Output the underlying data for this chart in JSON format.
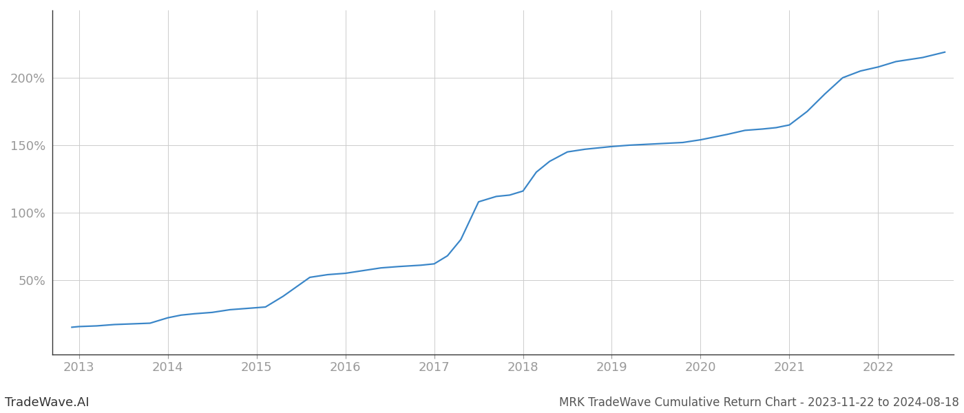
{
  "title": "MRK TradeWave Cumulative Return Chart - 2023-11-22 to 2024-08-18",
  "watermark": "TradeWave.AI",
  "line_color": "#3a86c8",
  "background_color": "#ffffff",
  "grid_color": "#cccccc",
  "x_years": [
    2012.92,
    2013.0,
    2013.2,
    2013.4,
    2013.6,
    2013.8,
    2014.0,
    2014.15,
    2014.3,
    2014.5,
    2014.7,
    2014.9,
    2015.1,
    2015.3,
    2015.6,
    2015.8,
    2016.0,
    2016.2,
    2016.4,
    2016.6,
    2016.85,
    2017.0,
    2017.15,
    2017.3,
    2017.5,
    2017.7,
    2017.85,
    2018.0,
    2018.15,
    2018.3,
    2018.5,
    2018.7,
    2018.85,
    2019.0,
    2019.2,
    2019.5,
    2019.8,
    2020.0,
    2020.15,
    2020.3,
    2020.5,
    2020.7,
    2020.85,
    2021.0,
    2021.2,
    2021.4,
    2021.6,
    2021.8,
    2022.0,
    2022.2,
    2022.5,
    2022.75
  ],
  "y_values": [
    15,
    15.5,
    16,
    17,
    17.5,
    18,
    22,
    24,
    25,
    26,
    28,
    29,
    30,
    38,
    52,
    54,
    55,
    57,
    59,
    60,
    61,
    62,
    68,
    80,
    108,
    112,
    113,
    116,
    130,
    138,
    145,
    147,
    148,
    149,
    150,
    151,
    152,
    154,
    156,
    158,
    161,
    162,
    163,
    165,
    175,
    188,
    200,
    205,
    208,
    212,
    215,
    219
  ],
  "xticks": [
    2013,
    2014,
    2015,
    2016,
    2017,
    2018,
    2019,
    2020,
    2021,
    2022
  ],
  "yticks": [
    50,
    100,
    150,
    200
  ],
  "ylim": [
    -5,
    250
  ],
  "xlim": [
    2012.7,
    2022.85
  ],
  "tick_color": "#999999",
  "tick_fontsize": 13,
  "title_fontsize": 12,
  "watermark_fontsize": 13,
  "line_width": 1.6,
  "spine_color": "#333333"
}
